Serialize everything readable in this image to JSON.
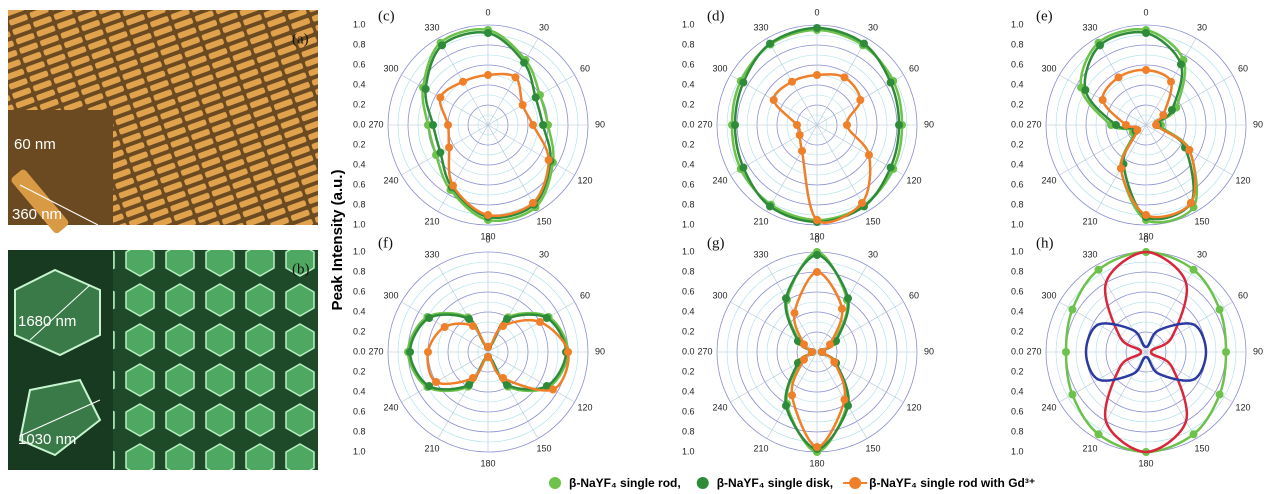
{
  "micrographs": [
    {
      "label": "(a)",
      "annotations": [
        "60 nm",
        "360 nm"
      ]
    },
    {
      "label": "(b)",
      "annotations": [
        "1680 nm",
        "1030 nm"
      ]
    }
  ],
  "y_axis_label": "Peak Intensity (a.u.)",
  "legend": [
    {
      "name": "β-NaYF₄ single rod,",
      "color": "#6cc24a"
    },
    {
      "name": "β-NaYF₄ single disk,",
      "color": "#2e8b3a"
    },
    {
      "name": "β-NaYF₄ single rod with Gd³⁺",
      "color": "#f07f2a"
    }
  ],
  "chart_data": [
    {
      "type": "polar",
      "label": "(c)",
      "rlim": [
        0,
        1
      ],
      "rticks": [
        {
          "value": 0,
          "label": "0.0"
        },
        0.2,
        0.4,
        0.6,
        0.8,
        {
          "value": 1,
          "label": "1.0"
        }
      ],
      "thetaticks": [
        0,
        30,
        60,
        90,
        120,
        150,
        180,
        210,
        240,
        270,
        300,
        330
      ],
      "theta": [
        0,
        30,
        60,
        90,
        120,
        150,
        180,
        210,
        240,
        270,
        300,
        330
      ],
      "series": [
        {
          "color": "#6cc24a",
          "markers": true,
          "values": [
            0.95,
            0.75,
            0.6,
            0.6,
            0.75,
            0.95,
            0.95,
            0.75,
            0.6,
            0.6,
            0.75,
            0.95
          ]
        },
        {
          "color": "#2e8b3a",
          "markers": true,
          "values": [
            0.92,
            0.72,
            0.55,
            0.55,
            0.72,
            0.92,
            0.92,
            0.72,
            0.55,
            0.55,
            0.72,
            0.92
          ]
        },
        {
          "color": "#f07f2a",
          "markers": true,
          "values": [
            0.5,
            0.55,
            0.4,
            0.45,
            0.7,
            0.9,
            0.9,
            0.7,
            0.45,
            0.4,
            0.55,
            0.5
          ]
        }
      ]
    },
    {
      "type": "polar",
      "label": "(d)",
      "rlim": [
        0,
        1
      ],
      "rticks": [
        {
          "value": 0,
          "label": "0.0"
        },
        0.2,
        0.4,
        0.6,
        0.8,
        {
          "value": 1,
          "label": "1.0"
        }
      ],
      "thetaticks": [
        0,
        30,
        60,
        90,
        120,
        150,
        180,
        210,
        240,
        270,
        300,
        330
      ],
      "theta": [
        0,
        30,
        60,
        90,
        120,
        150,
        180,
        210,
        240,
        270,
        300,
        330
      ],
      "series": [
        {
          "color": "#6cc24a",
          "markers": true,
          "values": [
            0.95,
            0.92,
            0.88,
            0.85,
            0.88,
            0.93,
            0.95,
            0.92,
            0.88,
            0.85,
            0.88,
            0.93
          ]
        },
        {
          "color": "#2e8b3a",
          "markers": true,
          "values": [
            0.97,
            0.94,
            0.85,
            0.82,
            0.85,
            0.94,
            0.97,
            0.94,
            0.85,
            0.82,
            0.85,
            0.94
          ]
        },
        {
          "color": "#f07f2a",
          "markers": true,
          "values": [
            0.5,
            0.55,
            0.5,
            0.3,
            0.6,
            0.9,
            0.95,
            0.3,
            0.2,
            0.2,
            0.5,
            0.5
          ]
        }
      ]
    },
    {
      "type": "polar",
      "label": "(e)",
      "rlim": [
        0,
        1
      ],
      "rticks": [
        {
          "value": 0,
          "label": "0.0"
        },
        0.2,
        0.4,
        0.6,
        0.8,
        {
          "value": 1,
          "label": "1.0"
        }
      ],
      "thetaticks": [
        0,
        30,
        60,
        90,
        120,
        150,
        180,
        210,
        240,
        270,
        300,
        330
      ],
      "theta": [
        0,
        30,
        60,
        90,
        120,
        150,
        180,
        210,
        240,
        270,
        300,
        330
      ],
      "series": [
        {
          "color": "#6cc24a",
          "markers": true,
          "values": [
            0.95,
            0.75,
            0.35,
            0.15,
            0.5,
            0.95,
            0.95,
            0.5,
            0.15,
            0.35,
            0.75,
            0.95
          ]
        },
        {
          "color": "#2e8b3a",
          "markers": true,
          "values": [
            0.92,
            0.7,
            0.3,
            0.12,
            0.45,
            0.9,
            0.92,
            0.45,
            0.12,
            0.3,
            0.7,
            0.92
          ]
        },
        {
          "color": "#f07f2a",
          "markers": true,
          "values": [
            0.55,
            0.5,
            0.2,
            0.1,
            0.5,
            0.9,
            0.9,
            0.5,
            0.1,
            0.2,
            0.5,
            0.55
          ]
        }
      ]
    },
    {
      "type": "polar",
      "label": "(f)",
      "rlim": [
        0,
        1
      ],
      "rticks": [
        {
          "value": 0,
          "label": "0.0"
        },
        0.2,
        0.4,
        0.6,
        0.8,
        {
          "value": 1,
          "label": "1.0"
        }
      ],
      "thetaticks": [
        0,
        30,
        60,
        90,
        120,
        150,
        180,
        210,
        240,
        270,
        300,
        330
      ],
      "theta": [
        0,
        30,
        60,
        90,
        120,
        150,
        180,
        210,
        240,
        270,
        300,
        330
      ],
      "series": [
        {
          "color": "#6cc24a",
          "markers": true,
          "values": [
            0.05,
            0.4,
            0.7,
            0.8,
            0.7,
            0.4,
            0.05,
            0.4,
            0.7,
            0.8,
            0.7,
            0.4
          ]
        },
        {
          "color": "#2e8b3a",
          "markers": true,
          "values": [
            0.05,
            0.38,
            0.68,
            0.78,
            0.68,
            0.38,
            0.05,
            0.38,
            0.68,
            0.78,
            0.68,
            0.38
          ]
        },
        {
          "color": "#f07f2a",
          "markers": true,
          "values": [
            0.05,
            0.3,
            0.6,
            0.8,
            0.75,
            0.3,
            0.05,
            0.3,
            0.6,
            0.6,
            0.5,
            0.3
          ]
        }
      ]
    },
    {
      "type": "polar",
      "label": "(g)",
      "rlim": [
        0,
        1
      ],
      "rticks": [
        {
          "value": 0,
          "label": "0.0"
        },
        0.2,
        0.4,
        0.6,
        0.8,
        {
          "value": 1,
          "label": "1.0"
        }
      ],
      "thetaticks": [
        0,
        30,
        60,
        90,
        120,
        150,
        180,
        210,
        240,
        270,
        300,
        330
      ],
      "theta": [
        0,
        30,
        60,
        90,
        120,
        150,
        180,
        210,
        240,
        270,
        300,
        330
      ],
      "series": [
        {
          "color": "#6cc24a",
          "markers": true,
          "values": [
            1,
            0.6,
            0.2,
            0.05,
            0.2,
            0.6,
            1,
            0.6,
            0.2,
            0.05,
            0.2,
            0.6
          ]
        },
        {
          "color": "#2e8b3a",
          "markers": true,
          "values": [
            0.97,
            0.62,
            0.22,
            0.05,
            0.22,
            0.62,
            0.97,
            0.62,
            0.22,
            0.05,
            0.22,
            0.62
          ]
        },
        {
          "color": "#f07f2a",
          "markers": true,
          "values": [
            0.8,
            0.5,
            0.15,
            0.05,
            0.2,
            0.55,
            0.95,
            0.5,
            0.15,
            0.05,
            0.15,
            0.45
          ]
        }
      ]
    },
    {
      "type": "polar",
      "label": "(h)",
      "rlim": [
        0,
        1
      ],
      "rticks": [
        {
          "value": 0,
          "label": "0.0"
        },
        0.2,
        0.4,
        0.6,
        0.8,
        {
          "value": 1,
          "label": "1.0"
        }
      ],
      "thetaticks": [
        0,
        30,
        60,
        90,
        120,
        150,
        180,
        210,
        240,
        270,
        300,
        330
      ],
      "theta": [
        0,
        30,
        60,
        90,
        120,
        150,
        180,
        210,
        240,
        270,
        300,
        330
      ],
      "series": [
        {
          "color": "#6cc24a",
          "markers": true,
          "values": [
            1,
            0.95,
            0.85,
            0.8,
            0.85,
            0.95,
            1,
            0.95,
            0.85,
            0.8,
            0.85,
            0.95
          ]
        },
        {
          "color": "#d9263a",
          "markers": false,
          "values": [
            1,
            0.8,
            0.3,
            0.05,
            0.3,
            0.8,
            1,
            0.8,
            0.3,
            0.05,
            0.3,
            0.8
          ]
        },
        {
          "color": "#2a3aa0",
          "markers": false,
          "values": [
            0.05,
            0.25,
            0.55,
            0.6,
            0.55,
            0.25,
            0.05,
            0.25,
            0.55,
            0.6,
            0.55,
            0.25
          ]
        }
      ]
    }
  ]
}
